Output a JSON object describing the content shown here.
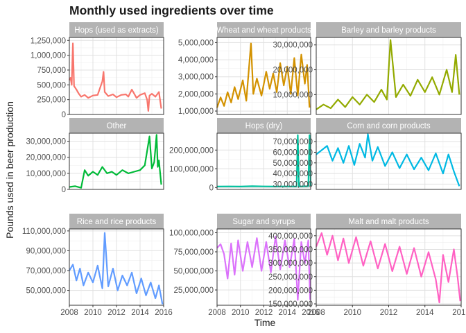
{
  "chart_data": {
    "type": "line",
    "title": "Monthly used ingredients over time",
    "xlabel": "Time",
    "ylabel": "Pounds used in beer production",
    "x_range": [
      2008,
      2016
    ],
    "x_ticks": [
      "2008",
      "2010",
      "2012",
      "2014",
      "2016"
    ],
    "grid": true,
    "legend": "none",
    "facets": [
      {
        "name": "Hops (used as extracts)",
        "color": "#F8766D",
        "ylim": [
          0,
          1300000
        ],
        "y_ticks": [
          0,
          250000,
          500000,
          750000,
          1000000,
          1250000
        ],
        "y_tick_labels": [
          "0",
          "250,000",
          "500,000",
          "750,000",
          "1,000,000",
          "1,250,000"
        ],
        "x": [
          2008,
          2008.1,
          2008.2,
          2008.3,
          2008.4,
          2008.6,
          2008.8,
          2009,
          2009.3,
          2009.6,
          2010,
          2010.4,
          2010.8,
          2010.9,
          2011,
          2011.3,
          2011.7,
          2012,
          2012.4,
          2012.8,
          2013,
          2013.3,
          2013.7,
          2014,
          2014.4,
          2014.6,
          2014.7,
          2014.8,
          2015,
          2015.3,
          2015.6,
          2015.8
        ],
        "values": [
          580000,
          620000,
          500000,
          1200000,
          480000,
          420000,
          350000,
          300000,
          330000,
          280000,
          320000,
          330000,
          560000,
          720000,
          380000,
          310000,
          340000,
          290000,
          330000,
          340000,
          300000,
          420000,
          280000,
          330000,
          360000,
          250000,
          60000,
          320000,
          350000,
          300000,
          380000,
          100000
        ]
      },
      {
        "name": "Wheat and wheat products",
        "color": "#D39200",
        "ylim": [
          800000,
          5300000
        ],
        "y_ticks": [
          1000000,
          2000000,
          3000000,
          4000000,
          5000000
        ],
        "y_tick_labels": [
          "1,000,000",
          "2,000,000",
          "3,000,000",
          "4,000,000",
          "5,000,000"
        ],
        "x": [
          2008,
          2008.3,
          2008.6,
          2008.9,
          2009.2,
          2009.5,
          2009.8,
          2010.2,
          2010.5,
          2010.9,
          2011.1,
          2011.4,
          2011.8,
          2012.2,
          2012.5,
          2012.8,
          2013.1,
          2013.4,
          2013.7,
          2014,
          2014.3,
          2014.6,
          2014.9,
          2015.2,
          2015.5,
          2015.7,
          2015.9
        ],
        "values": [
          1200000,
          1800000,
          1300000,
          2100000,
          1500000,
          2400000,
          1700000,
          2800000,
          1600000,
          4950000,
          2000000,
          2900000,
          1900000,
          3300000,
          2300000,
          3200000,
          2100000,
          3800000,
          2500000,
          3600000,
          2000000,
          4100000,
          1900000,
          4300000,
          2600000,
          3700000,
          1200000
        ]
      },
      {
        "name": "Barley and barley products",
        "color": "#93AA00",
        "ylim": [
          2000000,
          33000000
        ],
        "y_ticks": [
          10000000,
          20000000,
          30000000
        ],
        "y_tick_labels": [
          "10,000,000",
          "20,000,000",
          "30,000,000"
        ],
        "x": [
          2008,
          2008.4,
          2008.8,
          2009.2,
          2009.6,
          2010,
          2010.4,
          2010.8,
          2011.2,
          2011.6,
          2011.9,
          2012.1,
          2012.4,
          2012.8,
          2013.2,
          2013.6,
          2014,
          2014.4,
          2014.8,
          2015.2,
          2015.5,
          2015.7,
          2015.9
        ],
        "values": [
          4000000,
          6000000,
          4500000,
          8000000,
          5000000,
          9000000,
          6000000,
          10000000,
          7000000,
          12000000,
          8000000,
          32000000,
          9000000,
          14000000,
          9500000,
          16000000,
          11000000,
          17000000,
          10000000,
          20000000,
          11000000,
          26000000,
          10000000
        ]
      },
      {
        "name": "Other",
        "color": "#00BA38",
        "ylim": [
          0,
          35000000
        ],
        "y_ticks": [
          0,
          10000000,
          20000000,
          30000000
        ],
        "y_tick_labels": [
          "0",
          "10,000,000",
          "20,000,000",
          "30,000,000"
        ],
        "x": [
          2008,
          2008.5,
          2009,
          2009.3,
          2009.6,
          2010,
          2010.4,
          2010.8,
          2011.2,
          2011.6,
          2012,
          2012.5,
          2013,
          2013.5,
          2014,
          2014.4,
          2014.8,
          2015,
          2015.2,
          2015.4,
          2015.5,
          2015.6,
          2015.8
        ],
        "values": [
          1500000,
          2000000,
          1000000,
          12000000,
          8500000,
          11000000,
          9000000,
          14000000,
          10000000,
          11000000,
          9000000,
          12000000,
          10000000,
          11000000,
          12000000,
          15000000,
          33000000,
          13000000,
          17000000,
          34000000,
          14000000,
          18000000,
          3000000
        ]
      },
      {
        "name": "Hops (dry)",
        "color": "#00C19F",
        "ylim": [
          -10000000,
          290000000
        ],
        "y_ticks": [
          0,
          100000000,
          200000000
        ],
        "y_tick_labels": [
          "0",
          "100,000,000",
          "200,000,000"
        ],
        "x": [
          2008,
          2009,
          2010,
          2011,
          2012,
          2013,
          2014,
          2014.8,
          2014.9,
          2015,
          2015.8,
          2015.9,
          2016
        ],
        "values": [
          5000000,
          6000000,
          5000000,
          7000000,
          6000000,
          5000000,
          6000000,
          5000000,
          280000000,
          5000000,
          7000000,
          280000000,
          8000000
        ]
      },
      {
        "name": "Corn and corn products",
        "color": "#00B9E3",
        "ylim": [
          25000000,
          78000000
        ],
        "y_ticks": [
          30000000,
          40000000,
          50000000,
          60000000,
          70000000
        ],
        "y_tick_labels": [
          "30,000,000",
          "40,000,000",
          "50,000,000",
          "60,000,000",
          "70,000,000"
        ],
        "x": [
          2008,
          2008.3,
          2008.6,
          2008.9,
          2009.2,
          2009.5,
          2009.8,
          2010.1,
          2010.4,
          2010.7,
          2010.85,
          2011.1,
          2011.4,
          2011.8,
          2012.2,
          2012.6,
          2013,
          2013.4,
          2013.8,
          2014.2,
          2014.6,
          2015,
          2015.3,
          2015.6,
          2015.9
        ],
        "values": [
          58000000,
          62000000,
          66000000,
          52000000,
          64000000,
          50000000,
          66000000,
          48000000,
          68000000,
          55000000,
          77000000,
          52000000,
          65000000,
          47000000,
          60000000,
          45000000,
          58000000,
          44000000,
          55000000,
          43000000,
          59000000,
          40000000,
          58000000,
          42000000,
          28000000
        ]
      },
      {
        "name": "Rice and rice products",
        "color": "#619CFF",
        "ylim": [
          35000000,
          112000000
        ],
        "y_ticks": [
          50000000,
          70000000,
          90000000,
          110000000
        ],
        "y_tick_labels": [
          "50,000,000",
          "70,000,000",
          "90,000,000",
          "110,000,000"
        ],
        "x": [
          2008,
          2008.3,
          2008.6,
          2008.9,
          2009.2,
          2009.6,
          2010,
          2010.4,
          2010.8,
          2011,
          2011.3,
          2011.7,
          2012.1,
          2012.5,
          2012.9,
          2013.3,
          2013.7,
          2014.1,
          2014.5,
          2014.9,
          2015.3,
          2015.6,
          2015.9
        ],
        "values": [
          70000000,
          76000000,
          60000000,
          72000000,
          55000000,
          68000000,
          58000000,
          75000000,
          52000000,
          108000000,
          54000000,
          72000000,
          50000000,
          65000000,
          55000000,
          68000000,
          47000000,
          62000000,
          45000000,
          58000000,
          42000000,
          55000000,
          36000000
        ]
      },
      {
        "name": "Sugar and syrups",
        "color": "#DB72FB",
        "ylim": [
          5000000,
          105000000
        ],
        "y_ticks": [
          25000000,
          50000000,
          75000000,
          100000000
        ],
        "y_tick_labels": [
          "25,000,000",
          "50,000,000",
          "75,000,000",
          "100,000,000"
        ],
        "x": [
          2008,
          2008.3,
          2008.6,
          2008.9,
          2009.2,
          2009.5,
          2009.8,
          2010.2,
          2010.6,
          2011,
          2011.4,
          2011.8,
          2012.2,
          2012.6,
          2013,
          2013.4,
          2013.8,
          2014.2,
          2014.6,
          2014.9,
          2015.2,
          2015.5,
          2015.8,
          2015.95
        ],
        "values": [
          80000000,
          85000000,
          72000000,
          40000000,
          86000000,
          45000000,
          90000000,
          50000000,
          88000000,
          55000000,
          93000000,
          50000000,
          88000000,
          48000000,
          95000000,
          52000000,
          90000000,
          55000000,
          92000000,
          12000000,
          88000000,
          60000000,
          90000000,
          12000000
        ]
      },
      {
        "name": "Malt and malt products",
        "color": "#FF61C3",
        "ylim": [
          145000000,
          425000000
        ],
        "y_ticks": [
          150000000,
          200000000,
          250000000,
          300000000,
          350000000,
          400000000
        ],
        "y_tick_labels": [
          "150,000,000",
          "200,000,000",
          "250,000,000",
          "300,000,000",
          "350,000,000",
          "400,000,000"
        ],
        "x": [
          2008,
          2008.3,
          2008.6,
          2008.9,
          2009.2,
          2009.5,
          2009.8,
          2010.2,
          2010.6,
          2011,
          2011.4,
          2011.8,
          2012.2,
          2012.6,
          2013,
          2013.4,
          2013.8,
          2014.2,
          2014.6,
          2014.8,
          2015,
          2015.3,
          2015.6,
          2015.8,
          2015.95
        ],
        "values": [
          360000000,
          410000000,
          330000000,
          400000000,
          310000000,
          390000000,
          300000000,
          395000000,
          290000000,
          380000000,
          280000000,
          370000000,
          270000000,
          360000000,
          260000000,
          355000000,
          250000000,
          340000000,
          240000000,
          155000000,
          330000000,
          230000000,
          350000000,
          250000000,
          160000000
        ]
      }
    ]
  }
}
